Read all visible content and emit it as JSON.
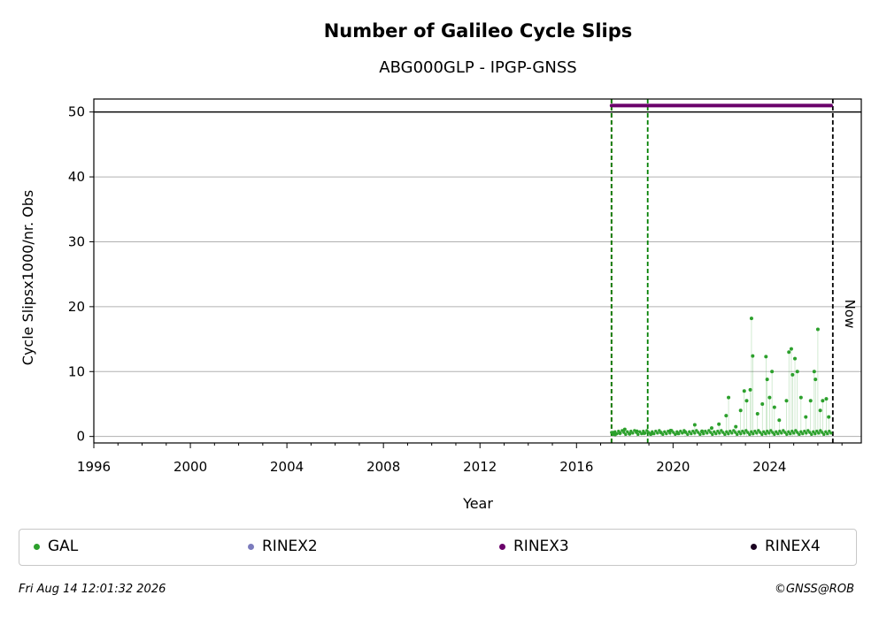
{
  "chart_data": {
    "type": "scatter",
    "title": "Number of Galileo Cycle Slips",
    "subtitle": "ABG000GLP - IPGP-GNSS",
    "xlabel": "Year",
    "ylabel": "Cycle Slipsx1000/nr. Obs",
    "xlim": [
      1996,
      2027.8
    ],
    "ylim": [
      -1,
      52
    ],
    "x_ticks": [
      "1996",
      "2000",
      "2004",
      "2008",
      "2012",
      "2016",
      "2020",
      "2024"
    ],
    "y_ticks": [
      "0",
      "10",
      "20",
      "30",
      "40",
      "50"
    ],
    "grid": "horizontal",
    "now_label": "Now",
    "vertical_lines": [
      {
        "x": 2017.45,
        "color": "#cc0000",
        "style": "dashed"
      },
      {
        "x": 2017.45,
        "color": "#008000",
        "style": "dashed"
      },
      {
        "x": 2018.95,
        "color": "#008000",
        "style": "dashed"
      },
      {
        "x": 2026.62,
        "color": "#000000",
        "style": "dashed"
      }
    ],
    "horizontal_lines": [
      {
        "y": 50,
        "color": "#000000"
      }
    ],
    "series": [
      {
        "name": "GAL",
        "color": "#2ca02c",
        "points": [
          [
            2017.5,
            0.6
          ],
          [
            2017.6,
            0.3
          ],
          [
            2017.8,
            0.5
          ],
          [
            2018.0,
            1.1
          ],
          [
            2018.2,
            0.4
          ],
          [
            2018.5,
            0.8
          ],
          [
            2018.8,
            0.5
          ],
          [
            2019.1,
            0.4
          ],
          [
            2019.5,
            0.6
          ],
          [
            2019.9,
            0.9
          ],
          [
            2020.2,
            0.5
          ],
          [
            2020.5,
            0.7
          ],
          [
            2020.9,
            1.8
          ],
          [
            2021.2,
            0.8
          ],
          [
            2021.6,
            1.3
          ],
          [
            2021.9,
            1.9
          ],
          [
            2022.2,
            3.2
          ],
          [
            2022.3,
            6.0
          ],
          [
            2022.6,
            1.5
          ],
          [
            2022.8,
            4.0
          ],
          [
            2022.95,
            7.0
          ],
          [
            2023.05,
            5.5
          ],
          [
            2023.2,
            7.2
          ],
          [
            2023.25,
            18.2
          ],
          [
            2023.3,
            12.4
          ],
          [
            2023.5,
            3.5
          ],
          [
            2023.7,
            5.0
          ],
          [
            2023.85,
            12.3
          ],
          [
            2023.9,
            8.8
          ],
          [
            2024.0,
            6.0
          ],
          [
            2024.1,
            10.0
          ],
          [
            2024.2,
            4.5
          ],
          [
            2024.4,
            2.5
          ],
          [
            2024.7,
            5.5
          ],
          [
            2024.8,
            13.0
          ],
          [
            2024.9,
            13.5
          ],
          [
            2024.95,
            9.5
          ],
          [
            2025.05,
            12.0
          ],
          [
            2025.15,
            10.0
          ],
          [
            2025.3,
            6.0
          ],
          [
            2025.5,
            3.0
          ],
          [
            2025.7,
            5.5
          ],
          [
            2025.85,
            10.0
          ],
          [
            2025.9,
            8.8
          ],
          [
            2026.0,
            16.5
          ],
          [
            2026.1,
            4.0
          ],
          [
            2026.2,
            5.5
          ],
          [
            2026.35,
            5.8
          ],
          [
            2026.45,
            3.0
          ]
        ]
      },
      {
        "name": "RINEX2",
        "color": "#7b7bbd",
        "points": []
      },
      {
        "name": "RINEX3",
        "color": "#6a006a",
        "x_range": [
          2017.45,
          2026.55
        ],
        "y": 51
      },
      {
        "name": "RINEX4",
        "color": "#1a0020",
        "points": []
      }
    ]
  },
  "legend": [
    {
      "label": "GAL",
      "color": "#2ca02c"
    },
    {
      "label": "RINEX2",
      "color": "#7b7bbd"
    },
    {
      "label": "RINEX3",
      "color": "#6a006a"
    },
    {
      "label": "RINEX4",
      "color": "#1a0020"
    }
  ],
  "footer": {
    "timestamp": "Fri Aug 14 12:01:32 2026",
    "credit": "©GNSS@ROB"
  }
}
